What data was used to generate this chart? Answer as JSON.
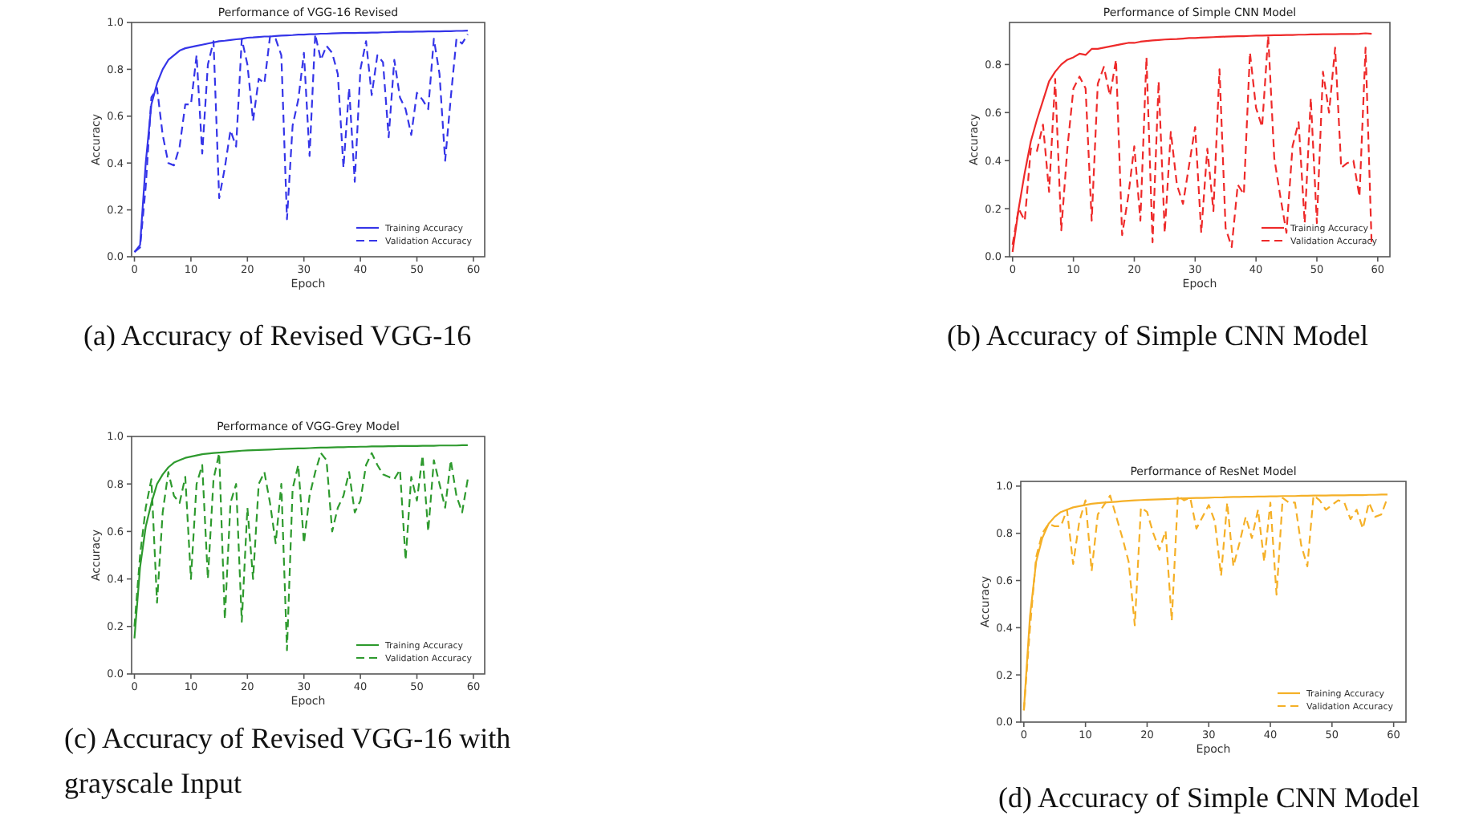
{
  "chart_data": [
    {
      "type": "line",
      "title": "Performance of VGG-16 Revised",
      "xlabel": "Epoch",
      "ylabel": "Accuracy",
      "annotations": [
        "(a) Accuracy of Revised VGG-16"
      ],
      "xlim": [
        -0.5,
        62
      ],
      "ylim": [
        0,
        1.0
      ],
      "xticks": [
        0,
        10,
        20,
        30,
        40,
        50,
        60
      ],
      "yticks": [
        {
          "value": 0,
          "label": "0.0"
        },
        {
          "value": 0.2,
          "label": "0.2"
        },
        {
          "value": 0.4,
          "label": "0.4"
        },
        {
          "value": 0.6,
          "label": "0.6"
        },
        {
          "value": 0.8,
          "label": "0.8"
        },
        {
          "value": 1.0,
          "label": "1.0"
        }
      ],
      "legend": "bottom right",
      "x": [
        0,
        1,
        2,
        3,
        4,
        5,
        6,
        7,
        8,
        9,
        10,
        11,
        12,
        13,
        14,
        15,
        16,
        17,
        18,
        19,
        20,
        21,
        22,
        23,
        24,
        25,
        26,
        27,
        28,
        29,
        30,
        31,
        32,
        33,
        34,
        35,
        36,
        37,
        38,
        39,
        40,
        41,
        42,
        43,
        44,
        45,
        46,
        47,
        48,
        49,
        50,
        51,
        52,
        53,
        54,
        55,
        56,
        57,
        58,
        59
      ],
      "series": [
        {
          "name": "Training Accuracy",
          "color": "#3535e8",
          "line_style": "solid",
          "values": [
            0.02,
            0.05,
            0.4,
            0.65,
            0.74,
            0.8,
            0.84,
            0.86,
            0.88,
            0.89,
            0.895,
            0.9,
            0.905,
            0.91,
            0.915,
            0.92,
            0.922,
            0.925,
            0.928,
            0.93,
            0.935,
            0.936,
            0.938,
            0.94,
            0.94,
            0.942,
            0.944,
            0.945,
            0.946,
            0.948,
            0.948,
            0.95,
            0.95,
            0.952,
            0.952,
            0.953,
            0.954,
            0.955,
            0.955,
            0.955,
            0.956,
            0.956,
            0.957,
            0.957,
            0.958,
            0.958,
            0.959,
            0.96,
            0.96,
            0.96,
            0.961,
            0.961,
            0.962,
            0.962,
            0.962,
            0.963,
            0.963,
            0.964,
            0.964,
            0.965
          ]
        },
        {
          "name": "Validation Accuracy",
          "color": "#3535e8",
          "line_style": "dashed",
          "values": [
            0.02,
            0.04,
            0.3,
            0.68,
            0.72,
            0.52,
            0.4,
            0.39,
            0.47,
            0.65,
            0.65,
            0.86,
            0.44,
            0.82,
            0.92,
            0.25,
            0.38,
            0.54,
            0.47,
            0.93,
            0.82,
            0.58,
            0.76,
            0.74,
            0.94,
            0.93,
            0.86,
            0.16,
            0.56,
            0.67,
            0.87,
            0.43,
            0.95,
            0.84,
            0.9,
            0.87,
            0.78,
            0.38,
            0.72,
            0.32,
            0.8,
            0.92,
            0.69,
            0.86,
            0.83,
            0.51,
            0.84,
            0.68,
            0.63,
            0.52,
            0.7,
            0.67,
            0.63,
            0.93,
            0.78,
            0.41,
            0.68,
            0.93,
            0.91,
            0.95
          ]
        }
      ]
    },
    {
      "type": "line",
      "title": "Performance of Simple CNN Model",
      "xlabel": "Epoch",
      "ylabel": "Accuracy",
      "annotations": [
        "(b) Accuracy of Simple CNN Model"
      ],
      "xlim": [
        -0.5,
        62
      ],
      "ylim": [
        0,
        0.975
      ],
      "xticks": [
        0,
        10,
        20,
        30,
        40,
        50,
        60
      ],
      "yticks": [
        {
          "value": 0,
          "label": "0.0"
        },
        {
          "value": 0.2,
          "label": "0.2"
        },
        {
          "value": 0.4,
          "label": "0.4"
        },
        {
          "value": 0.6,
          "label": "0.6"
        },
        {
          "value": 0.8,
          "label": "0.8"
        }
      ],
      "legend": "bottom right",
      "x": [
        0,
        1,
        2,
        3,
        4,
        5,
        6,
        7,
        8,
        9,
        10,
        11,
        12,
        13,
        14,
        15,
        16,
        17,
        18,
        19,
        20,
        21,
        22,
        23,
        24,
        25,
        26,
        27,
        28,
        29,
        30,
        31,
        32,
        33,
        34,
        35,
        36,
        37,
        38,
        39,
        40,
        41,
        42,
        43,
        44,
        45,
        46,
        47,
        48,
        49,
        50,
        51,
        52,
        53,
        54,
        55,
        56,
        57,
        58,
        59
      ],
      "series": [
        {
          "name": "Training Accuracy",
          "color": "#ee2a2a",
          "line_style": "solid",
          "values": [
            0.02,
            0.2,
            0.35,
            0.48,
            0.57,
            0.65,
            0.73,
            0.77,
            0.8,
            0.82,
            0.83,
            0.845,
            0.84,
            0.865,
            0.865,
            0.87,
            0.875,
            0.88,
            0.885,
            0.89,
            0.89,
            0.895,
            0.898,
            0.9,
            0.902,
            0.904,
            0.905,
            0.906,
            0.908,
            0.91,
            0.91,
            0.912,
            0.913,
            0.914,
            0.915,
            0.916,
            0.917,
            0.918,
            0.918,
            0.919,
            0.92,
            0.92,
            0.921,
            0.922,
            0.922,
            0.923,
            0.923,
            0.924,
            0.924,
            0.925,
            0.925,
            0.926,
            0.926,
            0.926,
            0.927,
            0.927,
            0.927,
            0.928,
            0.93,
            0.928
          ]
        },
        {
          "name": "Validation Accuracy",
          "color": "#ee2a2a",
          "line_style": "dashed",
          "values": [
            0.05,
            0.2,
            0.15,
            0.45,
            0.44,
            0.55,
            0.27,
            0.74,
            0.11,
            0.45,
            0.7,
            0.75,
            0.7,
            0.15,
            0.72,
            0.79,
            0.67,
            0.82,
            0.09,
            0.25,
            0.46,
            0.15,
            0.83,
            0.06,
            0.73,
            0.1,
            0.52,
            0.3,
            0.22,
            0.38,
            0.54,
            0.1,
            0.45,
            0.19,
            0.78,
            0.12,
            0.04,
            0.3,
            0.26,
            0.85,
            0.62,
            0.54,
            0.92,
            0.41,
            0.25,
            0.1,
            0.46,
            0.56,
            0.14,
            0.66,
            0.14,
            0.77,
            0.6,
            0.87,
            0.37,
            0.39,
            0.4,
            0.25,
            0.87,
            0.05
          ]
        }
      ]
    },
    {
      "type": "line",
      "title": "Performance of VGG-Grey Model",
      "xlabel": "Epoch",
      "ylabel": "Accuracy",
      "annotations": [
        "(c) Accuracy of Revised VGG-16 with grayscale Input"
      ],
      "xlim": [
        -0.5,
        62
      ],
      "ylim": [
        0,
        1.0
      ],
      "xticks": [
        0,
        10,
        20,
        30,
        40,
        50,
        60
      ],
      "yticks": [
        {
          "value": 0,
          "label": "0.0"
        },
        {
          "value": 0.2,
          "label": "0.2"
        },
        {
          "value": 0.4,
          "label": "0.4"
        },
        {
          "value": 0.6,
          "label": "0.6"
        },
        {
          "value": 0.8,
          "label": "0.8"
        },
        {
          "value": 1.0,
          "label": "1.0"
        }
      ],
      "legend": "bottom right",
      "x": [
        0,
        1,
        2,
        3,
        4,
        5,
        6,
        7,
        8,
        9,
        10,
        11,
        12,
        13,
        14,
        15,
        16,
        17,
        18,
        19,
        20,
        21,
        22,
        23,
        24,
        25,
        26,
        27,
        28,
        29,
        30,
        31,
        32,
        33,
        34,
        35,
        36,
        37,
        38,
        39,
        40,
        41,
        42,
        43,
        44,
        45,
        46,
        47,
        48,
        49,
        50,
        51,
        52,
        53,
        54,
        55,
        56,
        57,
        58,
        59
      ],
      "series": [
        {
          "name": "Training Accuracy",
          "color": "#2e9a2e",
          "line_style": "solid",
          "values": [
            0.15,
            0.45,
            0.62,
            0.72,
            0.8,
            0.84,
            0.87,
            0.89,
            0.9,
            0.91,
            0.915,
            0.92,
            0.925,
            0.928,
            0.93,
            0.932,
            0.934,
            0.936,
            0.938,
            0.94,
            0.941,
            0.942,
            0.943,
            0.944,
            0.945,
            0.946,
            0.947,
            0.948,
            0.949,
            0.95,
            0.95,
            0.951,
            0.952,
            0.953,
            0.953,
            0.954,
            0.955,
            0.955,
            0.956,
            0.956,
            0.957,
            0.957,
            0.958,
            0.958,
            0.958,
            0.959,
            0.959,
            0.96,
            0.96,
            0.96,
            0.96,
            0.961,
            0.961,
            0.961,
            0.962,
            0.962,
            0.962,
            0.962,
            0.963,
            0.963
          ]
        },
        {
          "name": "Validation Accuracy",
          "color": "#2e9a2e",
          "line_style": "dashed",
          "values": [
            0.2,
            0.5,
            0.7,
            0.82,
            0.3,
            0.68,
            0.85,
            0.75,
            0.72,
            0.83,
            0.4,
            0.8,
            0.88,
            0.4,
            0.82,
            0.93,
            0.23,
            0.72,
            0.8,
            0.22,
            0.7,
            0.4,
            0.8,
            0.85,
            0.72,
            0.55,
            0.8,
            0.1,
            0.78,
            0.88,
            0.55,
            0.75,
            0.85,
            0.93,
            0.9,
            0.6,
            0.7,
            0.75,
            0.85,
            0.68,
            0.73,
            0.88,
            0.93,
            0.88,
            0.84,
            0.83,
            0.82,
            0.86,
            0.48,
            0.83,
            0.73,
            0.92,
            0.6,
            0.9,
            0.8,
            0.7,
            0.9,
            0.75,
            0.68,
            0.82
          ]
        }
      ]
    },
    {
      "type": "line",
      "title": "Performance of ResNet Model",
      "xlabel": "Epoch",
      "ylabel": "Accuracy",
      "annotations": [
        "(d) Accuracy of Simple CNN Model"
      ],
      "xlim": [
        -0.5,
        62
      ],
      "ylim": [
        0,
        1.02
      ],
      "xticks": [
        0,
        10,
        20,
        30,
        40,
        50,
        60
      ],
      "yticks": [
        {
          "value": 0,
          "label": "0.0"
        },
        {
          "value": 0.2,
          "label": "0.2"
        },
        {
          "value": 0.4,
          "label": "0.4"
        },
        {
          "value": 0.6,
          "label": "0.6"
        },
        {
          "value": 0.8,
          "label": "0.8"
        },
        {
          "value": 1.0,
          "label": "1.0"
        }
      ],
      "legend": "bottom right",
      "x": [
        0,
        1,
        2,
        3,
        4,
        5,
        6,
        7,
        8,
        9,
        10,
        11,
        12,
        13,
        14,
        15,
        16,
        17,
        18,
        19,
        20,
        21,
        22,
        23,
        24,
        25,
        26,
        27,
        28,
        29,
        30,
        31,
        32,
        33,
        34,
        35,
        36,
        37,
        38,
        39,
        40,
        41,
        42,
        43,
        44,
        45,
        46,
        47,
        48,
        49,
        50,
        51,
        52,
        53,
        54,
        55,
        56,
        57,
        58,
        59
      ],
      "series": [
        {
          "name": "Training Accuracy",
          "color": "#f5b027",
          "line_style": "solid",
          "values": [
            0.05,
            0.45,
            0.68,
            0.78,
            0.84,
            0.87,
            0.89,
            0.9,
            0.91,
            0.915,
            0.92,
            0.925,
            0.928,
            0.93,
            0.932,
            0.934,
            0.936,
            0.938,
            0.94,
            0.941,
            0.942,
            0.943,
            0.944,
            0.945,
            0.946,
            0.947,
            0.948,
            0.949,
            0.95,
            0.95,
            0.951,
            0.952,
            0.952,
            0.953,
            0.954,
            0.954,
            0.955,
            0.955,
            0.956,
            0.956,
            0.957,
            0.957,
            0.958,
            0.958,
            0.958,
            0.959,
            0.959,
            0.96,
            0.96,
            0.96,
            0.961,
            0.961,
            0.961,
            0.962,
            0.962,
            0.962,
            0.963,
            0.963,
            0.964,
            0.964
          ]
        },
        {
          "name": "Validation Accuracy",
          "color": "#f5b027",
          "line_style": "dashed",
          "values": [
            0.05,
            0.4,
            0.7,
            0.8,
            0.84,
            0.83,
            0.83,
            0.9,
            0.67,
            0.85,
            0.94,
            0.64,
            0.88,
            0.92,
            0.96,
            0.87,
            0.78,
            0.68,
            0.41,
            0.91,
            0.89,
            0.8,
            0.73,
            0.81,
            0.43,
            0.96,
            0.94,
            0.95,
            0.82,
            0.87,
            0.92,
            0.85,
            0.62,
            0.93,
            0.66,
            0.76,
            0.87,
            0.78,
            0.9,
            0.68,
            0.93,
            0.54,
            0.95,
            0.93,
            0.93,
            0.75,
            0.66,
            0.96,
            0.94,
            0.9,
            0.92,
            0.94,
            0.93,
            0.86,
            0.9,
            0.82,
            0.93,
            0.87,
            0.88,
            0.95
          ]
        }
      ]
    }
  ]
}
